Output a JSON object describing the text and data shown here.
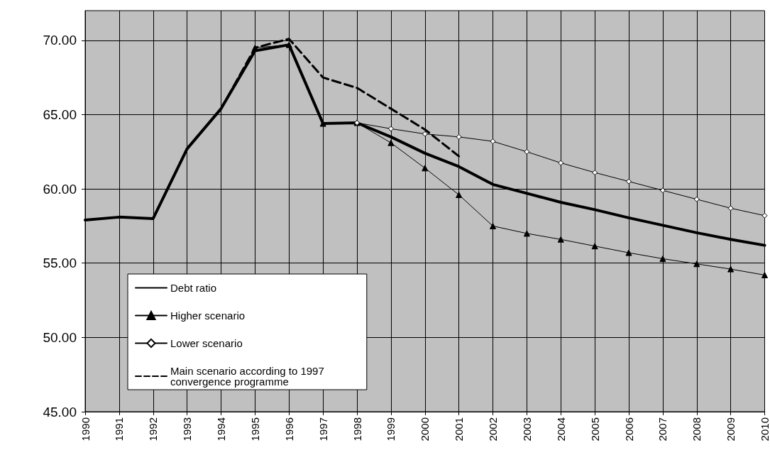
{
  "chart_data": {
    "type": "line",
    "categories": [
      "1990",
      "1991",
      "1992",
      "1993",
      "1994",
      "1995",
      "1996",
      "1997",
      "1998",
      "1999",
      "2000",
      "2001",
      "2002",
      "2003",
      "2004",
      "2005",
      "2006",
      "2007",
      "2008",
      "2009",
      "2010"
    ],
    "ylim": [
      45,
      72
    ],
    "yticks": [
      {
        "value": 45,
        "label": "45.00"
      },
      {
        "value": 50,
        "label": "50.00"
      },
      {
        "value": 55,
        "label": "55.00"
      },
      {
        "value": 60,
        "label": "60.00"
      },
      {
        "value": 65,
        "label": "65.00"
      },
      {
        "value": 70,
        "label": "70.00"
      }
    ],
    "grid": true,
    "legend": "bottom left",
    "series": [
      {
        "name": "Debt ratio",
        "color": "#000000",
        "marker": "none",
        "line_style": "solid",
        "values": [
          57.9,
          58.1,
          58.0,
          62.7,
          65.4,
          69.3,
          69.7,
          64.4,
          64.45,
          63.5,
          62.4,
          61.5,
          60.3,
          59.7,
          59.1,
          58.6,
          58.05,
          57.55,
          57.05,
          56.6,
          56.2
        ]
      },
      {
        "name": "Higher scenario",
        "color": "#000000",
        "marker": "triangle",
        "line_style": "solid",
        "values": [
          null,
          null,
          null,
          null,
          null,
          69.5,
          69.7,
          64.4,
          64.45,
          63.1,
          61.4,
          59.6,
          57.5,
          57.0,
          56.6,
          56.15,
          55.7,
          55.3,
          54.95,
          54.6,
          54.2
        ]
      },
      {
        "name": "Lower scenario",
        "color": "#000000",
        "marker": "diamond",
        "line_style": "solid",
        "values": [
          null,
          null,
          null,
          null,
          null,
          null,
          null,
          null,
          64.45,
          64.05,
          63.7,
          63.5,
          63.2,
          62.5,
          61.75,
          61.1,
          60.5,
          59.9,
          59.3,
          58.7,
          58.2
        ]
      },
      {
        "name": "Main scenario according to 1997\nconvergence programme",
        "color": "#000000",
        "marker": "none",
        "line_style": "dashed",
        "values": [
          null,
          null,
          null,
          null,
          65.4,
          69.5,
          70.1,
          67.5,
          66.8,
          65.4,
          64.0,
          62.2,
          null,
          null,
          null,
          null,
          null,
          null,
          null,
          null,
          null
        ]
      }
    ]
  }
}
